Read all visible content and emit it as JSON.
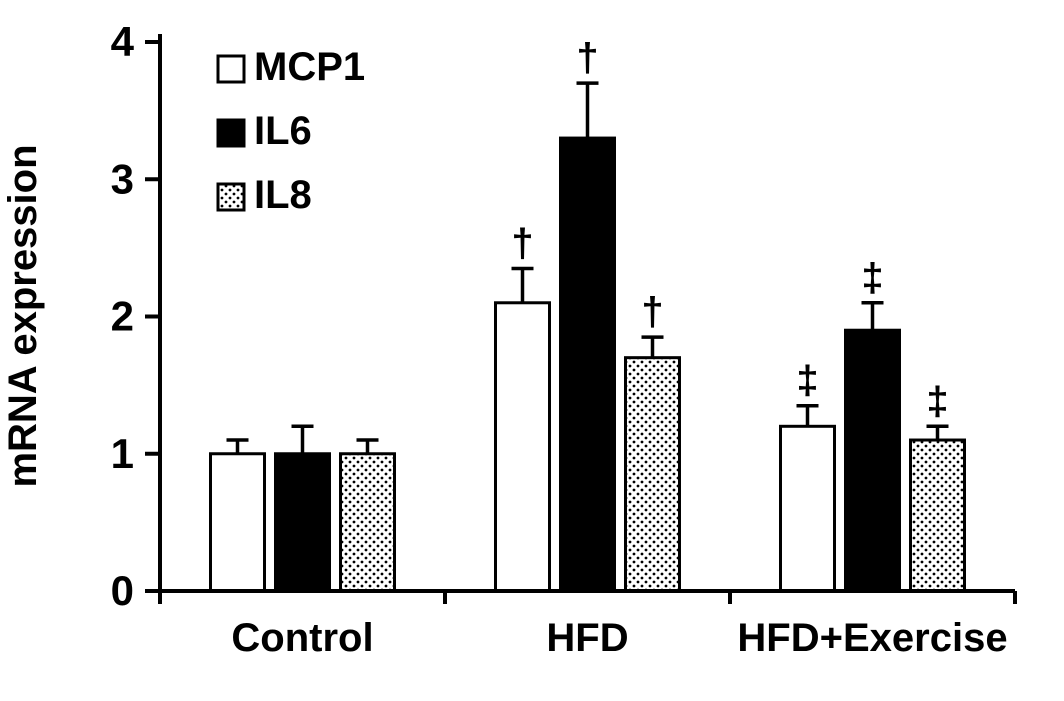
{
  "chart_data": {
    "type": "bar",
    "title": "",
    "xlabel": "",
    "ylabel": "mRNA expression",
    "ylim": [
      0,
      4
    ],
    "yticks": [
      0,
      1,
      2,
      3,
      4
    ],
    "categories": [
      "Control",
      "HFD",
      "HFD+Exercise"
    ],
    "series": [
      {
        "name": "MCP1",
        "style": "white",
        "values": [
          1.0,
          2.1,
          1.2
        ],
        "errors": [
          0.1,
          0.25,
          0.15
        ],
        "annotations": [
          "",
          "†",
          "‡"
        ]
      },
      {
        "name": "IL6",
        "style": "black",
        "values": [
          1.0,
          3.3,
          1.9
        ],
        "errors": [
          0.2,
          0.4,
          0.2
        ],
        "annotations": [
          "",
          "†",
          "‡"
        ]
      },
      {
        "name": "IL8",
        "style": "stipple",
        "values": [
          1.0,
          1.7,
          1.1
        ],
        "errors": [
          0.1,
          0.15,
          0.1
        ],
        "annotations": [
          "",
          "†",
          "‡"
        ]
      }
    ],
    "legend_position": "top-left",
    "grid": "off",
    "colors": {
      "bar_white": "#ffffff",
      "bar_black": "#000000",
      "border": "#000000",
      "background": "#ffffff"
    }
  }
}
